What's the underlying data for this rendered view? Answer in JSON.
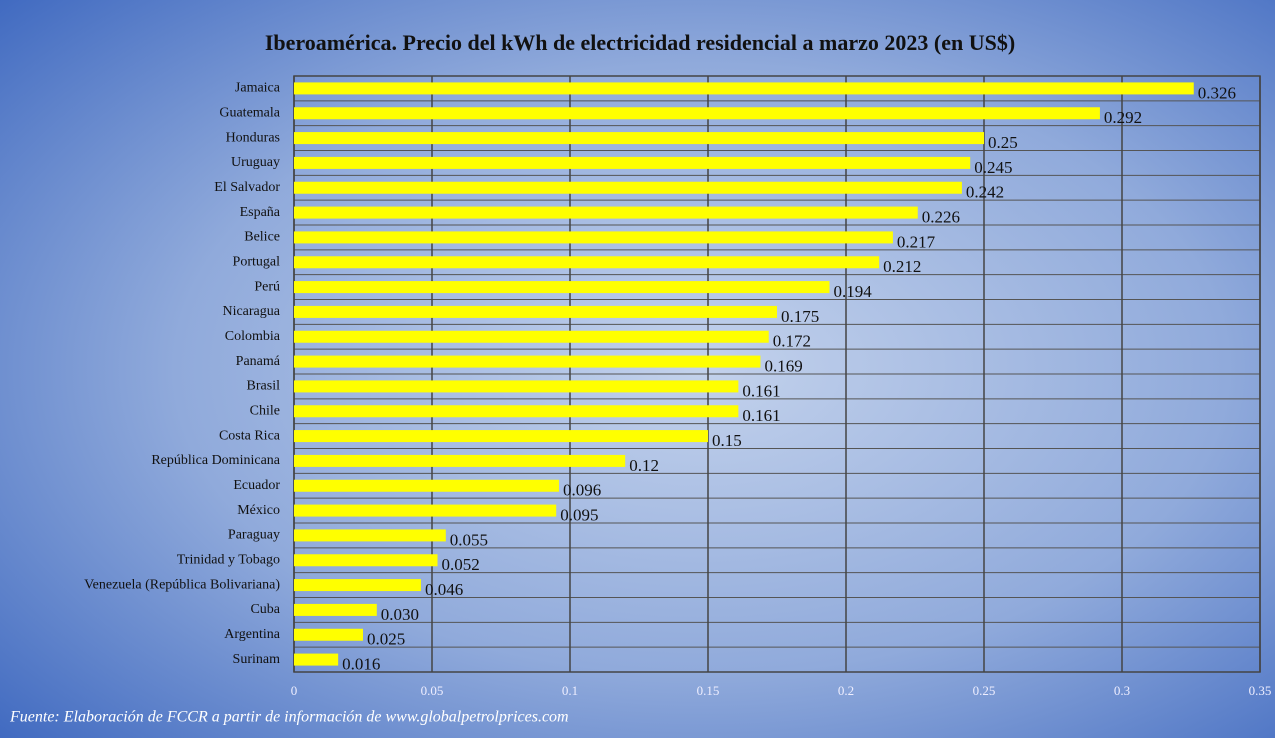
{
  "chart_data": {
    "type": "bar",
    "orientation": "horizontal",
    "title": "Iberoamérica. Precio del kWh de electricidad residencial a marzo 2023 (en US$)",
    "source": "Fuente: Elaboración de FCCR a partir de información de www.globalpetrolprices.com",
    "categories": [
      "Jamaica",
      "Guatemala",
      "Honduras",
      "Uruguay",
      "El Salvador",
      "España",
      "Belice",
      "Portugal",
      "Perú",
      "Nicaragua",
      "Colombia",
      "Panamá",
      "Brasil",
      "Chile",
      "Costa Rica",
      "República Dominicana",
      "Ecuador",
      "México",
      "Paraguay",
      "Trinidad y Tobago",
      "Venezuela (República Bolivariana)",
      "Cuba",
      "Argentina",
      "Surinam"
    ],
    "values": [
      0.326,
      0.292,
      0.25,
      0.245,
      0.242,
      0.226,
      0.217,
      0.212,
      0.194,
      0.175,
      0.172,
      0.169,
      0.161,
      0.161,
      0.15,
      0.12,
      0.096,
      0.095,
      0.055,
      0.052,
      0.046,
      0.03,
      0.025,
      0.016
    ],
    "value_labels": [
      "0.326",
      "0.292",
      "0.25",
      "0.245",
      "0.242",
      "0.226",
      "0.217",
      "0.212",
      "0.194",
      "0.175",
      "0.172",
      "0.169",
      "0.161",
      "0.161",
      "0.15",
      "0.12",
      "0.096",
      "0.095",
      "0.055",
      "0.052",
      "0.046",
      "0.030",
      "0.025",
      "0.016"
    ],
    "color": "#ffff00",
    "xlim": [
      0,
      0.35
    ],
    "xticks": [
      0,
      0.05,
      0.1,
      0.15,
      0.2,
      0.25,
      0.3,
      0.35
    ],
    "grid": true
  }
}
